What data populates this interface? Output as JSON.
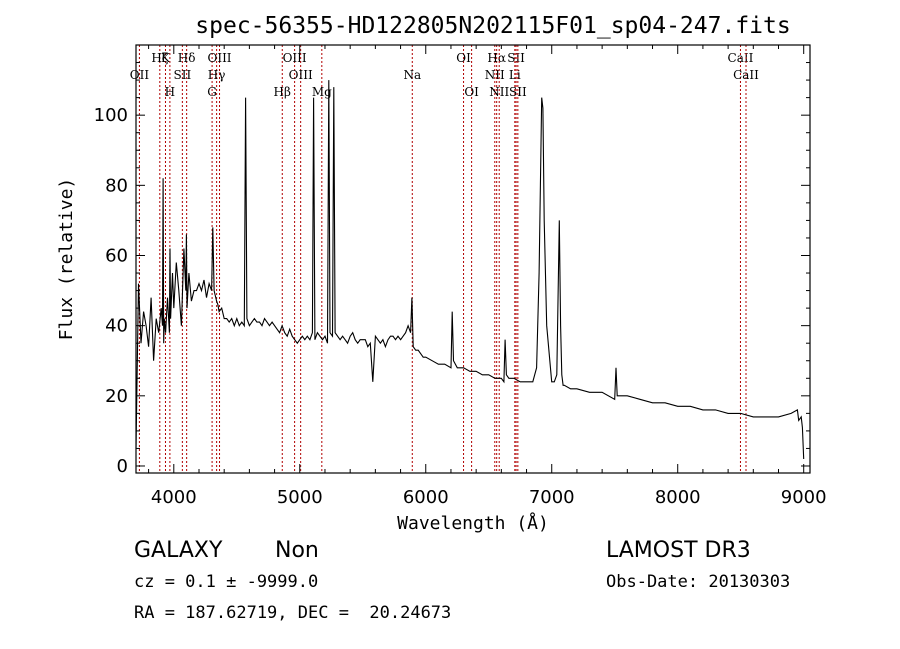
{
  "chart_data": {
    "type": "line",
    "title": "spec-56355-HD122805N202115F01_sp04-247.fits",
    "xlabel": "Wavelength (Å)",
    "ylabel": "Flux (relative)",
    "xlim": [
      3700,
      9050
    ],
    "ylim": [
      -2,
      120
    ],
    "xticks": [
      4000,
      5000,
      6000,
      7000,
      8000,
      9000
    ],
    "yticks": [
      0,
      20,
      40,
      60,
      80,
      100
    ],
    "grid": false,
    "series": [
      {
        "color": "#000000",
        "x": [
          3700,
          3720,
          3740,
          3760,
          3780,
          3800,
          3820,
          3840,
          3860,
          3880,
          3900,
          3910,
          3915,
          3920,
          3925,
          3935,
          3950,
          3965,
          3970,
          3975,
          3990,
          4000,
          4020,
          4040,
          4060,
          4080,
          4095,
          4100,
          4105,
          4120,
          4140,
          4160,
          4180,
          4200,
          4220,
          4240,
          4260,
          4280,
          4300,
          4310,
          4320,
          4340,
          4350,
          4360,
          4380,
          4400,
          4420,
          4440,
          4460,
          4480,
          4500,
          4520,
          4540,
          4560,
          4570,
          4580,
          4600,
          4620,
          4640,
          4660,
          4680,
          4700,
          4720,
          4740,
          4760,
          4780,
          4800,
          4820,
          4840,
          4860,
          4880,
          4900,
          4920,
          4940,
          4960,
          4980,
          5000,
          5020,
          5040,
          5060,
          5080,
          5100,
          5110,
          5120,
          5140,
          5160,
          5180,
          5200,
          5220,
          5230,
          5240,
          5260,
          5270,
          5280,
          5300,
          5320,
          5340,
          5360,
          5380,
          5400,
          5420,
          5440,
          5460,
          5480,
          5500,
          5520,
          5540,
          5560,
          5580,
          5600,
          5620,
          5640,
          5660,
          5680,
          5700,
          5720,
          5740,
          5760,
          5780,
          5800,
          5820,
          5840,
          5860,
          5880,
          5890,
          5900,
          5920,
          5940,
          5960,
          5980,
          6000,
          6050,
          6100,
          6150,
          6200,
          6210,
          6220,
          6250,
          6300,
          6350,
          6400,
          6450,
          6500,
          6550,
          6600,
          6620,
          6630,
          6640,
          6660,
          6700,
          6750,
          6800,
          6850,
          6880,
          6900,
          6910,
          6920,
          6930,
          6940,
          6960,
          7000,
          7020,
          7040,
          7060,
          7070,
          7080,
          7090,
          7100,
          7150,
          7200,
          7300,
          7400,
          7500,
          7510,
          7520,
          7600,
          7700,
          7800,
          7900,
          8000,
          8100,
          8200,
          8300,
          8400,
          8500,
          8600,
          8700,
          8800,
          8900,
          8950,
          8960,
          8980,
          8990,
          9000
        ],
        "y": [
          5,
          52,
          35,
          44,
          40,
          34,
          48,
          30,
          42,
          38,
          45,
          40,
          82,
          35,
          42,
          38,
          48,
          38,
          62,
          42,
          55,
          45,
          58,
          50,
          40,
          62,
          50,
          66,
          45,
          55,
          47,
          50,
          50,
          52,
          50,
          53,
          48,
          52,
          50,
          68,
          50,
          47,
          46,
          44,
          45,
          42,
          42,
          41,
          42,
          40,
          42,
          40,
          41,
          40,
          105,
          42,
          40,
          41,
          42,
          41,
          41,
          40,
          42,
          41,
          40,
          41,
          40,
          39,
          38,
          40,
          38,
          37,
          39,
          37,
          36,
          35,
          36,
          37,
          36,
          37,
          36,
          38,
          105,
          36,
          38,
          37,
          36,
          37,
          35,
          110,
          38,
          37,
          108,
          38,
          37,
          36,
          37,
          36,
          35,
          37,
          38,
          36,
          35,
          36,
          36,
          36,
          34,
          35,
          24,
          37,
          36,
          35,
          36,
          34,
          36,
          37,
          37,
          36,
          37,
          36,
          37,
          38,
          40,
          38,
          48,
          34,
          33,
          33,
          32,
          31,
          31,
          30,
          29,
          29,
          28,
          44,
          30,
          28,
          28,
          27,
          27,
          26,
          26,
          25,
          25,
          24,
          36,
          26,
          25,
          25,
          24,
          24,
          24,
          28,
          55,
          80,
          105,
          102,
          70,
          40,
          24,
          24,
          26,
          70,
          40,
          26,
          23,
          23,
          22,
          22,
          21,
          21,
          19,
          28,
          20,
          20,
          19,
          18,
          18,
          17,
          17,
          16,
          16,
          15,
          15,
          14,
          14,
          14,
          15,
          16,
          13,
          14,
          11,
          2
        ]
      }
    ],
    "line_markers": {
      "color": "#b00000",
      "lines": [
        {
          "x": 3934,
          "labels": [
            "K"
          ],
          "row": 0
        },
        {
          "x": 3969,
          "labels": [
            "H"
          ],
          "row": 2
        },
        {
          "x": 3889,
          "labels": [
            "Hζ"
          ],
          "row": 0
        },
        {
          "x": 3727,
          "labels": [
            "OII"
          ],
          "row": 1
        },
        {
          "x": 4102,
          "labels": [
            "Hδ"
          ],
          "row": 0
        },
        {
          "x": 4068,
          "labels": [
            "SII"
          ],
          "row": 1
        },
        {
          "x": 4340,
          "labels": [
            "Hγ"
          ],
          "row": 1
        },
        {
          "x": 4304,
          "labels": [
            "G"
          ],
          "row": 2
        },
        {
          "x": 4363,
          "labels": [
            "OIII"
          ],
          "row": 0
        },
        {
          "x": 4861,
          "labels": [
            "Hβ"
          ],
          "row": 2
        },
        {
          "x": 4959,
          "labels": [
            "OIII"
          ],
          "row": 0
        },
        {
          "x": 5007,
          "labels": [
            "OIII"
          ],
          "row": 1
        },
        {
          "x": 5175,
          "labels": [
            "Mg"
          ],
          "row": 2
        },
        {
          "x": 5893,
          "labels": [
            "Na"
          ],
          "row": 1
        },
        {
          "x": 6300,
          "labels": [
            "OI"
          ],
          "row": 0
        },
        {
          "x": 6364,
          "labels": [
            "OI"
          ],
          "row": 2
        },
        {
          "x": 6548,
          "labels": [
            "NII"
          ],
          "row": 1
        },
        {
          "x": 6563,
          "labels": [
            "Hα"
          ],
          "row": 0
        },
        {
          "x": 6583,
          "labels": [
            "NII"
          ],
          "row": 2
        },
        {
          "x": 6707,
          "labels": [
            "Li"
          ],
          "row": 1
        },
        {
          "x": 6717,
          "labels": [
            "SII"
          ],
          "row": 0
        },
        {
          "x": 6731,
          "labels": [
            "SII"
          ],
          "row": 2
        },
        {
          "x": 8498,
          "labels": [
            "CaII"
          ],
          "row": 0
        },
        {
          "x": 8542,
          "labels": [
            "CaII"
          ],
          "row": 1
        }
      ]
    }
  },
  "info": {
    "class_label": "GALAXY",
    "subclass_label": "Non",
    "cz_line": "cz = 0.1 ± -9999.0",
    "coords_line": "RA = 187.62719, DEC =  20.24673",
    "survey_label": "LAMOST DR3",
    "obs_date_line": "Obs-Date: 20130303"
  }
}
